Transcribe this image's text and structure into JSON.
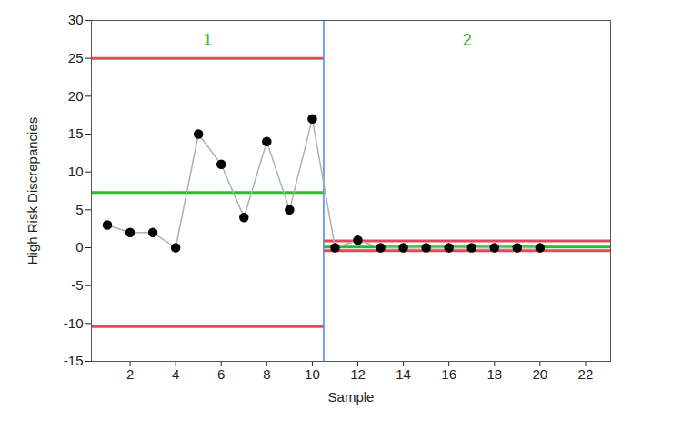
{
  "chart_data": {
    "type": "line",
    "x_label": "Sample",
    "y_label": "High Risk Discrepancies",
    "x": [
      1,
      2,
      3,
      4,
      5,
      6,
      7,
      8,
      9,
      10,
      11,
      12,
      13,
      14,
      15,
      16,
      17,
      18,
      19,
      20
    ],
    "values": [
      3,
      2,
      2,
      0,
      15,
      11,
      4,
      14,
      5,
      17,
      0,
      1,
      0,
      0,
      0,
      0,
      0,
      0,
      0,
      0
    ],
    "color": "#000000",
    "marker": "circle",
    "xlim": [
      0.3,
      23.1
    ],
    "ylim": [
      -15,
      30
    ],
    "xticks": [
      2,
      4,
      6,
      8,
      10,
      12,
      14,
      16,
      18,
      20,
      22
    ],
    "yticks": [
      -15,
      -10,
      -5,
      0,
      5,
      10,
      15,
      20,
      25,
      30
    ],
    "phase_boundary": 10.5,
    "phases": [
      {
        "name": "1",
        "center": 7.3,
        "ucl": 25,
        "lcl": -10.4
      },
      {
        "name": "2",
        "center": 0.1,
        "ucl": 0.9,
        "lcl": -0.4
      }
    ]
  }
}
